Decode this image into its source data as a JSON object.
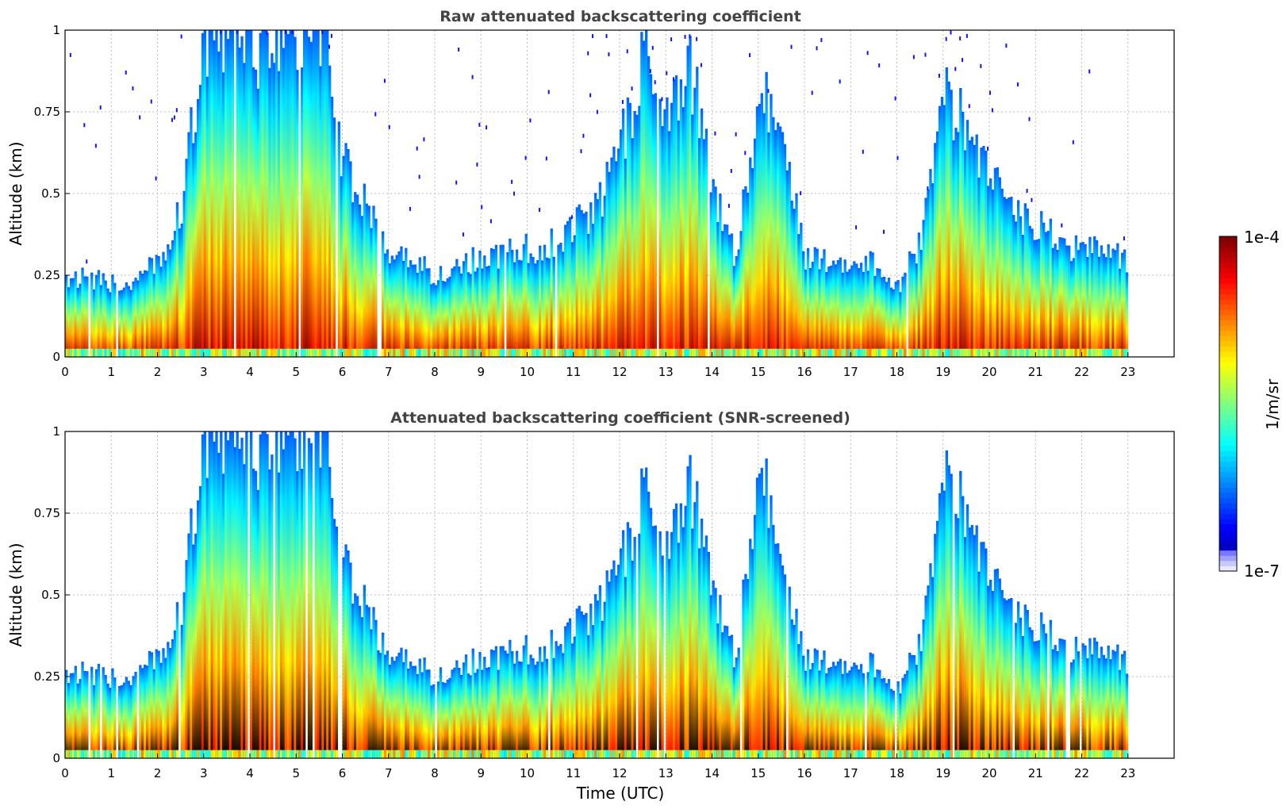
{
  "chart_data": [
    {
      "type": "heatmap",
      "title": "Raw attenuated backscattering coefficient",
      "xlabel": "",
      "ylabel": "Altitude (km)",
      "xlim": [
        0,
        24
      ],
      "ylim": [
        0,
        1
      ],
      "x_ticks": [
        "0",
        "1",
        "2",
        "3",
        "4",
        "5",
        "6",
        "7",
        "8",
        "9",
        "10",
        "11",
        "12",
        "13",
        "14",
        "15",
        "16",
        "17",
        "18",
        "19",
        "20",
        "21",
        "22",
        "23"
      ],
      "y_ticks": [
        "0",
        "0.25",
        "0.5",
        "0.75",
        "1"
      ],
      "grid": true,
      "screened": false,
      "profiles": {
        "time": [
          0,
          0.5,
          1,
          1.5,
          2,
          2.5,
          3,
          3.5,
          4,
          4.5,
          5,
          5.5,
          6,
          6.5,
          7,
          7.5,
          8,
          8.5,
          9,
          9.5,
          10,
          10.5,
          11,
          11.5,
          12,
          12.5,
          13,
          13.5,
          14,
          14.5,
          15,
          15.5,
          16,
          16.5,
          17,
          17.5,
          18,
          18.5,
          19,
          19.5,
          20,
          20.5,
          21,
          21.5,
          22,
          22.5,
          23
        ],
        "layer_top_km": [
          0.25,
          0.24,
          0.22,
          0.22,
          0.3,
          0.45,
          1.0,
          1.0,
          0.95,
          1.0,
          1.0,
          1.0,
          0.6,
          0.45,
          0.3,
          0.3,
          0.25,
          0.28,
          0.3,
          0.32,
          0.33,
          0.35,
          0.4,
          0.45,
          0.65,
          0.9,
          0.8,
          0.9,
          0.5,
          0.3,
          0.8,
          0.7,
          0.3,
          0.3,
          0.3,
          0.28,
          0.22,
          0.35,
          0.8,
          0.7,
          0.55,
          0.45,
          0.4,
          0.35,
          0.33,
          0.32,
          0.3
        ]
      },
      "colorscale": "jet",
      "zlim": [
        "1e-7",
        "1e-4"
      ]
    },
    {
      "type": "heatmap",
      "title": "Attenuated backscattering coefficient (SNR-screened)",
      "xlabel": "Time (UTC)",
      "ylabel": "Altitude (km)",
      "xlim": [
        0,
        24
      ],
      "ylim": [
        0,
        1
      ],
      "x_ticks": [
        "0",
        "1",
        "2",
        "3",
        "4",
        "5",
        "6",
        "7",
        "8",
        "9",
        "10",
        "11",
        "12",
        "13",
        "14",
        "15",
        "16",
        "17",
        "18",
        "19",
        "20",
        "21",
        "22",
        "23"
      ],
      "y_ticks": [
        "0",
        "0.25",
        "0.5",
        "0.75",
        "1"
      ],
      "grid": true,
      "screened": true,
      "profiles": {
        "time": [
          0,
          0.5,
          1,
          1.5,
          2,
          2.5,
          3,
          3.5,
          4,
          4.5,
          5,
          5.5,
          6,
          6.5,
          7,
          7.5,
          8,
          8.5,
          9,
          9.5,
          10,
          10.5,
          11,
          11.5,
          12,
          12.5,
          13,
          13.5,
          14,
          14.5,
          15,
          15.5,
          16,
          16.5,
          17,
          17.5,
          18,
          18.5,
          19,
          19.5,
          20,
          20.5,
          21,
          21.5,
          22,
          22.5,
          23
        ],
        "layer_top_km": [
          0.27,
          0.26,
          0.24,
          0.24,
          0.32,
          0.45,
          1.0,
          1.0,
          0.95,
          1.0,
          1.0,
          1.0,
          0.6,
          0.45,
          0.3,
          0.3,
          0.25,
          0.28,
          0.3,
          0.32,
          0.33,
          0.35,
          0.4,
          0.45,
          0.6,
          0.8,
          0.7,
          0.85,
          0.5,
          0.3,
          0.9,
          0.6,
          0.3,
          0.3,
          0.3,
          0.28,
          0.22,
          0.35,
          0.85,
          0.75,
          0.55,
          0.45,
          0.4,
          0.35,
          0.33,
          0.32,
          0.3
        ]
      },
      "colorscale": "jet",
      "zlim": [
        "1e-7",
        "1e-4"
      ]
    }
  ],
  "colorbar": {
    "label": "1/m/sr",
    "max_label": "1e-4",
    "min_label": "1e-7",
    "colorscale": "jet"
  },
  "colors": {
    "title_gray": "#444444",
    "screened_black": "#000000",
    "grid_gray": "#bdbdbd"
  }
}
